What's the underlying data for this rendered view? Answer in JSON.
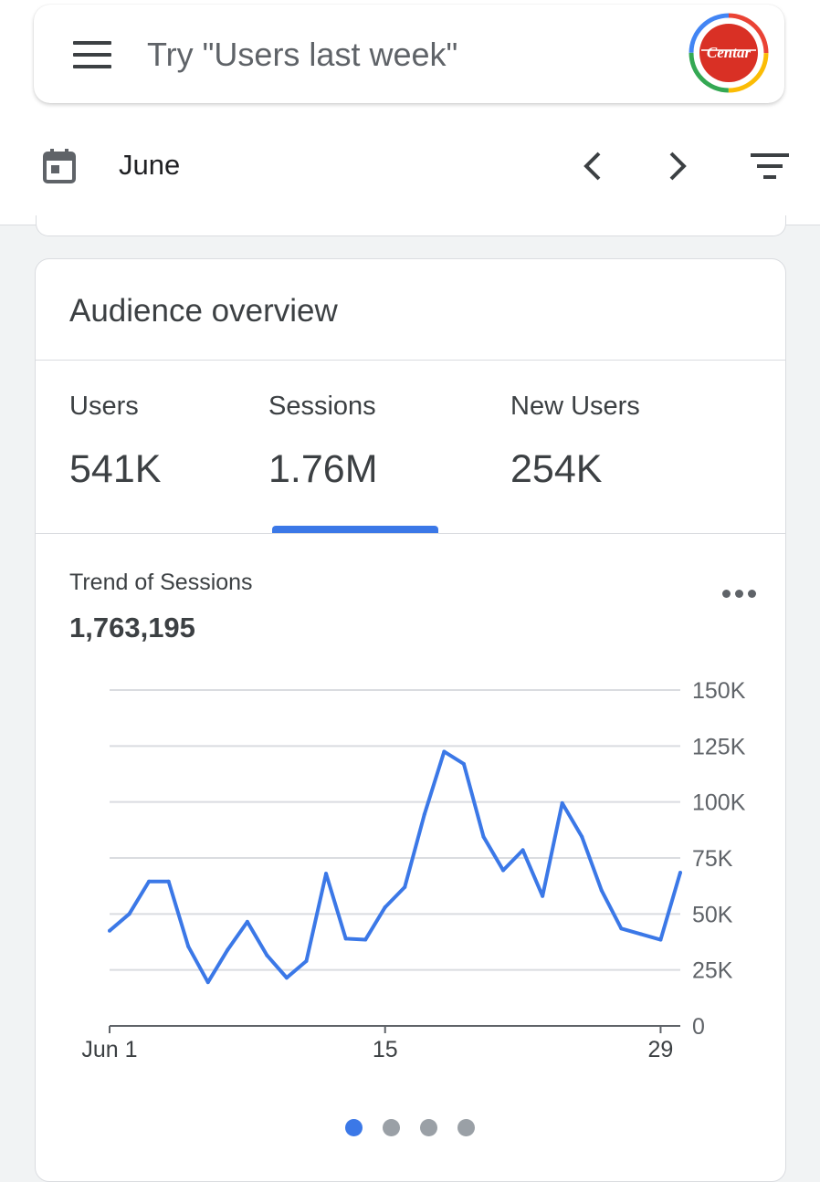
{
  "search": {
    "placeholder": "Try \"Users last week\""
  },
  "account": {
    "avatar_text": "Centar",
    "ring_colors": [
      "#ea4335",
      "#fbbc05",
      "#34a853",
      "#4285f4"
    ],
    "avatar_fill": "#d93025"
  },
  "toolbar": {
    "date_label": "June",
    "icons": [
      "menu-icon",
      "calendar-icon",
      "chevron-left-icon",
      "chevron-right-icon",
      "filter-icon"
    ]
  },
  "card": {
    "title": "Audience overview",
    "metrics": [
      {
        "label": "Users",
        "value": "541K"
      },
      {
        "label": "Sessions",
        "value": "1.76M"
      },
      {
        "label": "New Users",
        "value": "254K"
      }
    ],
    "selected_metric": "Sessions",
    "trend_label": "Trend of Sessions",
    "trend_total": "1,763,195",
    "accent_color": "#3b78e7",
    "pager": {
      "pages": 4,
      "current": 1
    }
  },
  "chart_data": {
    "type": "line",
    "x": [
      1,
      2,
      3,
      4,
      5,
      6,
      7,
      8,
      9,
      10,
      11,
      12,
      13,
      14,
      15,
      16,
      17,
      18,
      19,
      20,
      21,
      22,
      23,
      24,
      25,
      26,
      27,
      28,
      29,
      30
    ],
    "series": [
      {
        "values": [
          42500,
          50000,
          64500,
          64500,
          35500,
          19500,
          34000,
          46500,
          31500,
          21500,
          29000,
          68000,
          39000,
          38500,
          53000,
          62000,
          94500,
          122500,
          117000,
          84500,
          69500,
          78500,
          58000,
          99500,
          84500,
          60500,
          43500,
          41000,
          38500,
          68500
        ]
      }
    ],
    "x_ticks": [
      {
        "x": 1,
        "label": "Jun 1"
      },
      {
        "x": 15,
        "label": "15"
      },
      {
        "x": 29,
        "label": "29"
      }
    ],
    "y_ticks": [
      "0",
      "25K",
      "50K",
      "75K",
      "100K",
      "125K",
      "150K"
    ],
    "ylim": [
      0,
      150000
    ],
    "grid": true,
    "line_color": "#3b78e7"
  }
}
